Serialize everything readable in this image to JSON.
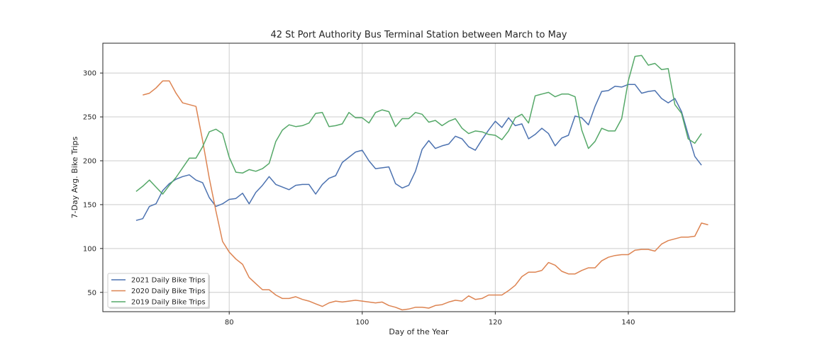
{
  "chart_data": {
    "type": "line",
    "title": "42 St Port Authority Bus Terminal Station between March to May",
    "xlabel": "Day of the Year",
    "ylabel": "7-Day Avg. Bike Trips",
    "xlim": [
      61,
      156
    ],
    "ylim": [
      28,
      334
    ],
    "xticks": [
      80,
      100,
      120,
      140
    ],
    "yticks": [
      50,
      100,
      150,
      200,
      250,
      300
    ],
    "grid": true,
    "legend_position": "lower-left",
    "series": [
      {
        "name": "2021 Daily Bike Trips",
        "color": "#4c72b0",
        "x": [
          66,
          67,
          68,
          69,
          70,
          71,
          72,
          73,
          74,
          75,
          76,
          77,
          78,
          79,
          80,
          81,
          82,
          83,
          84,
          85,
          86,
          87,
          88,
          89,
          90,
          91,
          92,
          93,
          94,
          95,
          96,
          97,
          98,
          99,
          100,
          101,
          102,
          103,
          104,
          105,
          106,
          107,
          108,
          109,
          110,
          111,
          112,
          113,
          114,
          115,
          116,
          117,
          118,
          119,
          120,
          121,
          122,
          123,
          124,
          125,
          126,
          127,
          128,
          129,
          130,
          131,
          132,
          133,
          134,
          135,
          136,
          137,
          138,
          139,
          140,
          141,
          142,
          143,
          144,
          145,
          146,
          147,
          148,
          149,
          150,
          151
        ],
        "y": [
          132,
          134,
          148,
          151,
          166,
          174,
          179,
          182,
          184,
          178,
          175,
          158,
          148,
          151,
          156,
          157,
          163,
          151,
          164,
          172,
          182,
          173,
          170,
          167,
          172,
          173,
          173,
          162,
          173,
          180,
          183,
          198,
          204,
          210,
          212,
          200,
          191,
          192,
          193,
          174,
          169,
          172,
          188,
          213,
          223,
          214,
          217,
          219,
          228,
          225,
          216,
          212,
          224,
          235,
          245,
          238,
          249,
          240,
          242,
          225,
          230,
          237,
          231,
          217,
          226,
          229,
          251,
          249,
          241,
          262,
          279,
          280,
          285,
          284,
          287,
          287,
          277,
          279,
          280,
          271,
          266,
          271,
          256,
          230,
          205,
          195
        ]
      },
      {
        "name": "2020 Daily Bike Trips",
        "color": "#dd8452",
        "x": [
          67,
          68,
          69,
          70,
          71,
          72,
          73,
          74,
          75,
          76,
          77,
          78,
          79,
          80,
          81,
          82,
          83,
          84,
          85,
          86,
          87,
          88,
          89,
          90,
          91,
          92,
          93,
          94,
          95,
          96,
          97,
          98,
          99,
          100,
          101,
          102,
          103,
          104,
          105,
          106,
          107,
          108,
          109,
          110,
          111,
          112,
          113,
          114,
          115,
          116,
          117,
          118,
          119,
          120,
          121,
          122,
          123,
          124,
          125,
          126,
          127,
          128,
          129,
          130,
          131,
          132,
          133,
          134,
          135,
          136,
          137,
          138,
          139,
          140,
          141,
          142,
          143,
          144,
          145,
          146,
          147,
          148,
          149,
          150,
          151,
          152
        ],
        "y": [
          275,
          277,
          283,
          291,
          291,
          277,
          266,
          264,
          262,
          223,
          180,
          143,
          108,
          96,
          88,
          82,
          67,
          60,
          53,
          53,
          47,
          43,
          43,
          45,
          42,
          40,
          37,
          34,
          38,
          40,
          39,
          40,
          41,
          40,
          39,
          38,
          39,
          35,
          33,
          30,
          31,
          33,
          33,
          32,
          35,
          36,
          39,
          41,
          40,
          46,
          42,
          43,
          47,
          47,
          47,
          52,
          58,
          68,
          73,
          73,
          75,
          84,
          81,
          74,
          71,
          71,
          75,
          78,
          78,
          86,
          90,
          92,
          93,
          93,
          98,
          99,
          99,
          97,
          105,
          109,
          111,
          113,
          113,
          114,
          129,
          127
        ]
      },
      {
        "name": "2019 Daily Bike Trips",
        "color": "#55a868",
        "x": [
          66,
          67,
          68,
          69,
          70,
          71,
          72,
          73,
          74,
          75,
          76,
          77,
          78,
          79,
          80,
          81,
          82,
          83,
          84,
          85,
          86,
          87,
          88,
          89,
          90,
          91,
          92,
          93,
          94,
          95,
          96,
          97,
          98,
          99,
          100,
          101,
          102,
          103,
          104,
          105,
          106,
          107,
          108,
          109,
          110,
          111,
          112,
          113,
          114,
          115,
          116,
          117,
          118,
          119,
          120,
          121,
          122,
          123,
          124,
          125,
          126,
          127,
          128,
          129,
          130,
          131,
          132,
          133,
          134,
          135,
          136,
          137,
          138,
          139,
          140,
          141,
          142,
          143,
          144,
          145,
          146,
          147,
          148,
          149,
          150,
          151
        ],
        "y": [
          165,
          171,
          178,
          170,
          162,
          172,
          181,
          192,
          203,
          203,
          216,
          233,
          236,
          231,
          204,
          187,
          186,
          190,
          188,
          191,
          197,
          222,
          235,
          241,
          239,
          240,
          243,
          254,
          255,
          239,
          240,
          242,
          255,
          249,
          249,
          243,
          255,
          258,
          256,
          239,
          248,
          248,
          255,
          253,
          244,
          246,
          240,
          245,
          248,
          237,
          231,
          234,
          233,
          230,
          229,
          224,
          234,
          249,
          253,
          243,
          274,
          276,
          278,
          273,
          276,
          276,
          273,
          235,
          214,
          222,
          237,
          234,
          234,
          248,
          291,
          319,
          320,
          309,
          311,
          304,
          305,
          264,
          254,
          225,
          220,
          231
        ]
      }
    ]
  }
}
